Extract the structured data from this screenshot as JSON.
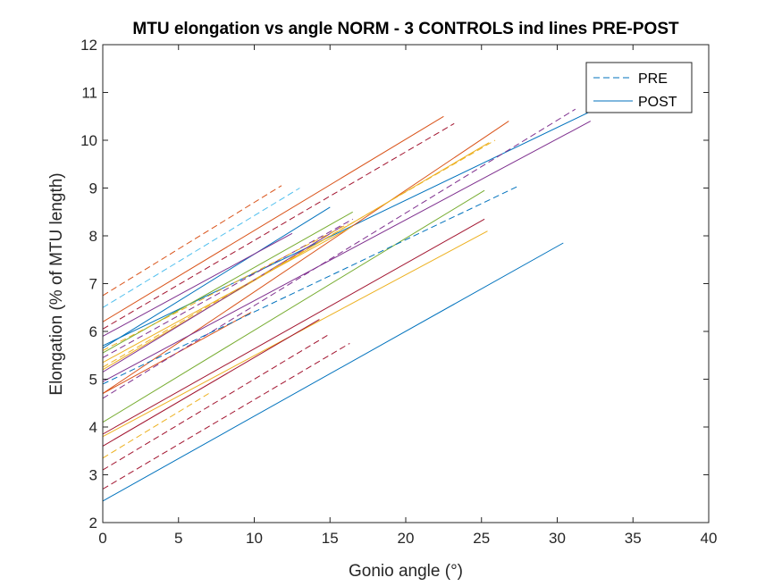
{
  "chart_data": {
    "type": "line",
    "title": "MTU elongation vs angle NORM - 3 CONTROLS ind lines PRE-POST",
    "xlabel": "Gonio angle (°)",
    "ylabel": "Elongation (% of MTU length)",
    "xlim": [
      0,
      40
    ],
    "ylim": [
      2,
      12
    ],
    "xticks": [
      "0",
      "5",
      "10",
      "15",
      "20",
      "25",
      "30",
      "35",
      "40"
    ],
    "yticks": [
      "2",
      "3",
      "4",
      "5",
      "6",
      "7",
      "8",
      "9",
      "10",
      "11",
      "12"
    ],
    "grid": false,
    "legend": {
      "position": "top-right",
      "entries": [
        {
          "label": "PRE",
          "style": "dashed",
          "color": "#0072bd"
        },
        {
          "label": "POST",
          "style": "solid",
          "color": "#0072bd"
        }
      ]
    },
    "series": [
      {
        "style": "solid",
        "color": "#0072bd",
        "x": [
          0,
          30.4
        ],
        "y": [
          2.45,
          7.85
        ]
      },
      {
        "style": "solid",
        "color": "#0072bd",
        "x": [
          0,
          33.5
        ],
        "y": [
          5.7,
          10.8
        ]
      },
      {
        "style": "solid",
        "color": "#0072bd",
        "x": [
          0,
          15
        ],
        "y": [
          5.65,
          8.6
        ]
      },
      {
        "style": "solid",
        "color": "#d95319",
        "x": [
          0,
          22.5
        ],
        "y": [
          6.2,
          10.5
        ]
      },
      {
        "style": "solid",
        "color": "#d95319",
        "x": [
          0,
          26.8
        ],
        "y": [
          4.7,
          10.4
        ]
      },
      {
        "style": "solid",
        "color": "#d95319",
        "x": [
          0,
          9.8
        ],
        "y": [
          4.7,
          6.4
        ]
      },
      {
        "style": "solid",
        "color": "#edb120",
        "x": [
          0,
          25.5
        ],
        "y": [
          5.2,
          9.95
        ]
      },
      {
        "style": "solid",
        "color": "#edb120",
        "x": [
          0,
          16.5
        ],
        "y": [
          5.35,
          8.2
        ]
      },
      {
        "style": "solid",
        "color": "#edb120",
        "x": [
          0,
          25.4
        ],
        "y": [
          3.8,
          8.1
        ]
      },
      {
        "style": "solid",
        "color": "#7e2f8e",
        "x": [
          0,
          32.2
        ],
        "y": [
          4.95,
          10.4
        ]
      },
      {
        "style": "solid",
        "color": "#7e2f8e",
        "x": [
          0,
          15.8
        ],
        "y": [
          5.15,
          8.2
        ]
      },
      {
        "style": "solid",
        "color": "#7e2f8e",
        "x": [
          0,
          12.5
        ],
        "y": [
          5.9,
          8.05
        ]
      },
      {
        "style": "solid",
        "color": "#77ac30",
        "x": [
          0,
          25.2
        ],
        "y": [
          4.1,
          8.95
        ]
      },
      {
        "style": "solid",
        "color": "#77ac30",
        "x": [
          0,
          16.5
        ],
        "y": [
          5.55,
          8.5
        ]
      },
      {
        "style": "solid",
        "color": "#a2142f",
        "x": [
          0,
          14.3
        ],
        "y": [
          3.6,
          6.25
        ]
      },
      {
        "style": "solid",
        "color": "#a2142f",
        "x": [
          0,
          25.2
        ],
        "y": [
          3.85,
          8.35
        ]
      },
      {
        "style": "dashed",
        "color": "#d95319",
        "x": [
          0,
          11.8
        ],
        "y": [
          6.75,
          9.05
        ]
      },
      {
        "style": "dashed",
        "color": "#4dbeee",
        "x": [
          0,
          13
        ],
        "y": [
          6.5,
          9.0
        ]
      },
      {
        "style": "dashed",
        "color": "#a2142f",
        "x": [
          0,
          23.2
        ],
        "y": [
          6.05,
          10.35
        ]
      },
      {
        "style": "dashed",
        "color": "#7e2f8e",
        "x": [
          0,
          31.2
        ],
        "y": [
          4.6,
          10.65
        ]
      },
      {
        "style": "dashed",
        "color": "#0072bd",
        "x": [
          0,
          27.5
        ],
        "y": [
          4.9,
          9.05
        ]
      },
      {
        "style": "dashed",
        "color": "#edb120",
        "x": [
          0,
          25.9
        ],
        "y": [
          5.25,
          10.0
        ]
      },
      {
        "style": "dashed",
        "color": "#7e2f8e",
        "x": [
          0,
          16.5
        ],
        "y": [
          5.45,
          8.35
        ]
      },
      {
        "style": "dashed",
        "color": "#edb120",
        "x": [
          0,
          16.2
        ],
        "y": [
          5.6,
          8.25
        ]
      },
      {
        "style": "dashed",
        "color": "#edb120",
        "x": [
          0,
          7
        ],
        "y": [
          3.35,
          4.7
        ]
      },
      {
        "style": "dashed",
        "color": "#a2142f",
        "x": [
          0,
          15
        ],
        "y": [
          3.1,
          5.95
        ]
      },
      {
        "style": "dashed",
        "color": "#a2142f",
        "x": [
          0,
          16.3
        ],
        "y": [
          2.7,
          5.75
        ]
      }
    ]
  }
}
